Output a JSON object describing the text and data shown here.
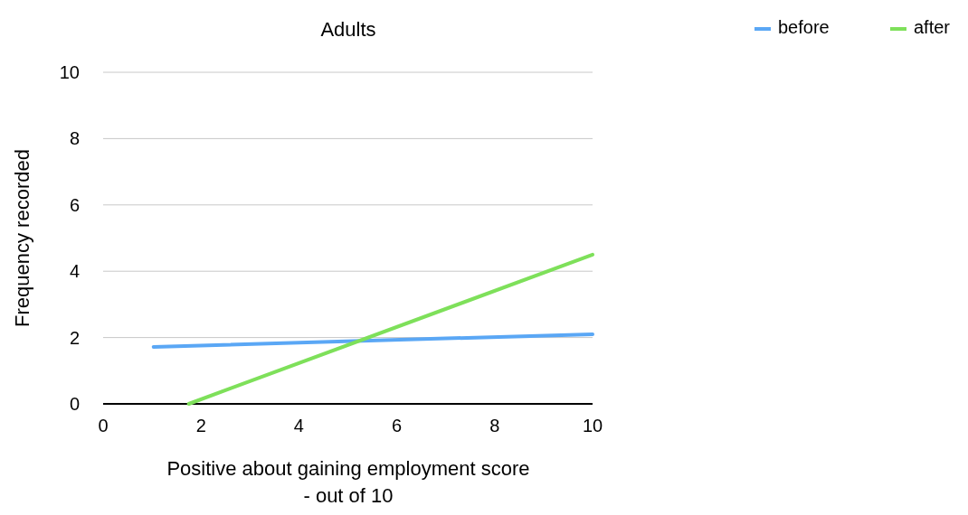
{
  "chart_data": {
    "type": "line",
    "title": "Adults",
    "xlabel": "Positive about gaining employment score\n- out of 10",
    "ylabel": "Frequency recorded",
    "series": [
      {
        "name": "before",
        "color": "#5aa7f5",
        "x": [
          1.03,
          10
        ],
        "values": [
          1.72,
          2.1
        ]
      },
      {
        "name": "after",
        "color": "#7ee05a",
        "x": [
          1.75,
          10
        ],
        "values": [
          0,
          4.5
        ]
      }
    ],
    "xlim": [
      0,
      10
    ],
    "xticks": [
      0,
      2,
      4,
      6,
      8,
      10
    ],
    "ylim": [
      0,
      10
    ],
    "yticks": [
      0,
      2,
      4,
      6,
      8,
      10
    ],
    "grid": "y",
    "legend": "right",
    "marker": "none",
    "line_style": "solid"
  }
}
